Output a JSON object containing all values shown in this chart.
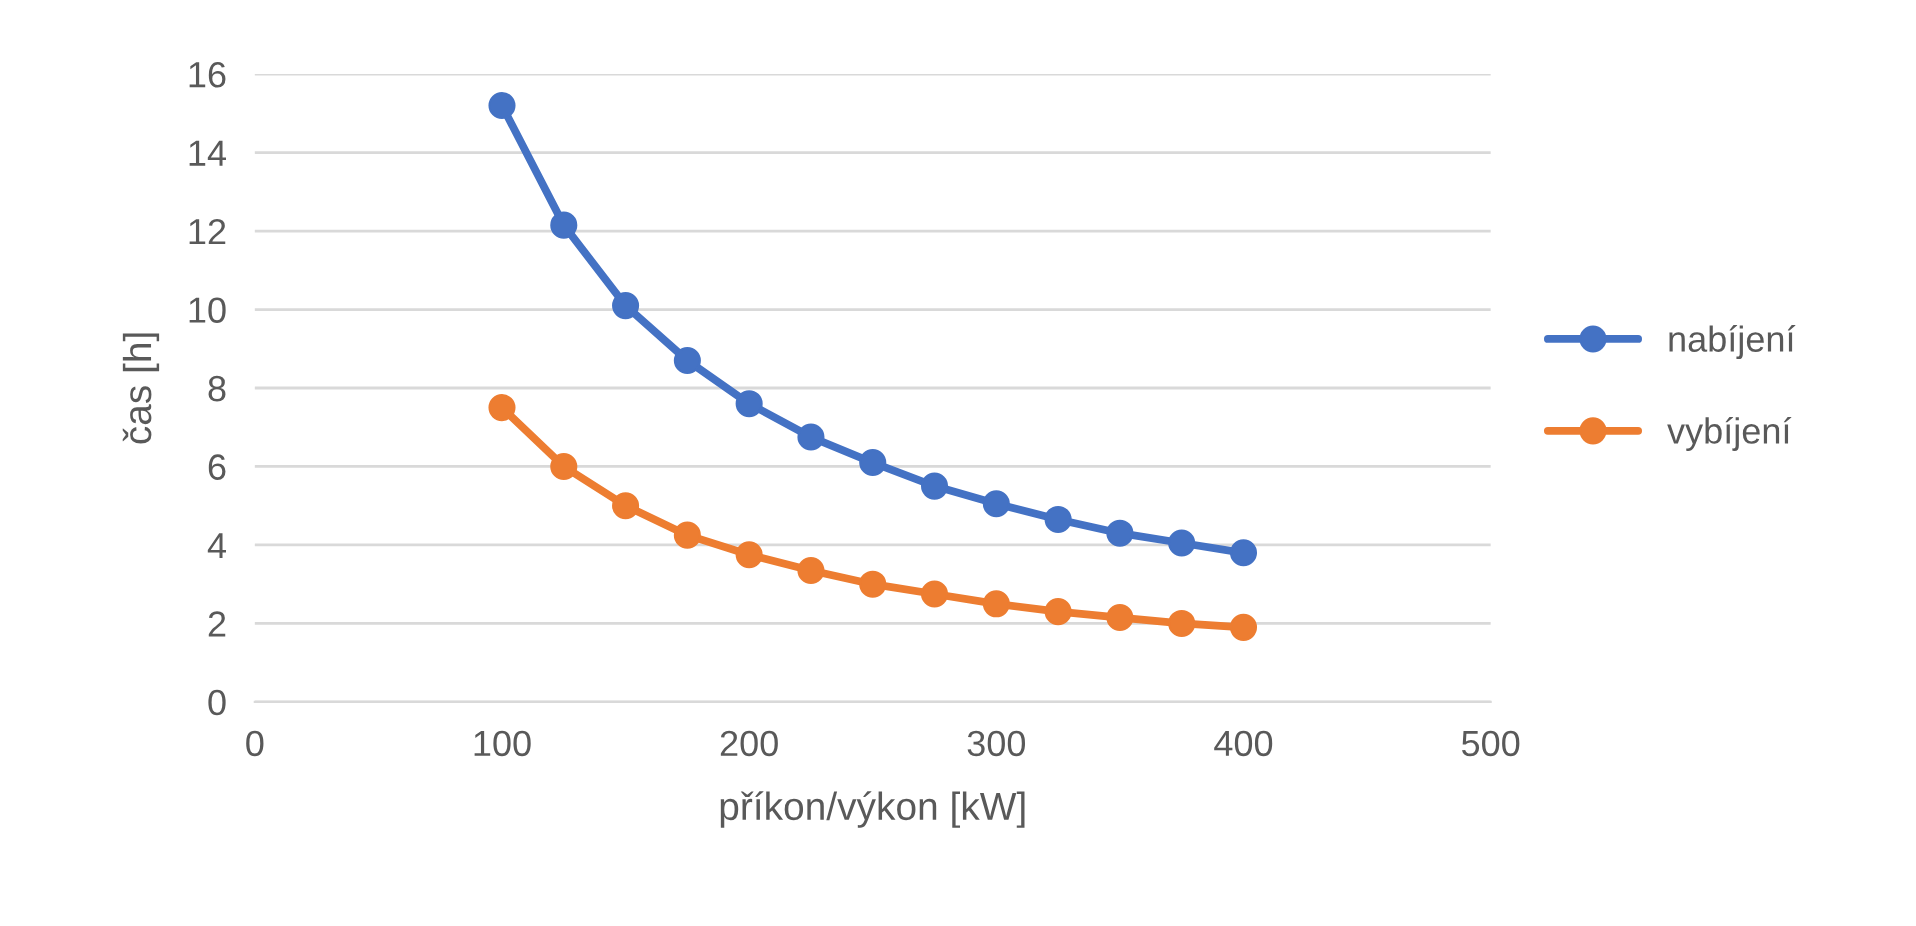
{
  "chart_data": {
    "type": "line",
    "xlabel": "příkon/výkon [kW]",
    "ylabel": "čas [h]",
    "x": [
      100,
      125,
      150,
      175,
      200,
      225,
      250,
      275,
      300,
      325,
      350,
      375,
      400
    ],
    "series": [
      {
        "name": "nabíjení",
        "color": "#4472c4",
        "values": [
          15.2,
          12.15,
          10.1,
          8.7,
          7.6,
          6.75,
          6.1,
          5.5,
          5.05,
          4.65,
          4.3,
          4.05,
          3.8
        ]
      },
      {
        "name": "vybíjení",
        "color": "#ed7d31",
        "values": [
          7.5,
          6.0,
          5.0,
          4.25,
          3.75,
          3.35,
          3.0,
          2.75,
          2.5,
          2.3,
          2.15,
          2.0,
          1.9
        ]
      }
    ],
    "xlim": [
      0,
      500
    ],
    "xticks": [
      0,
      100,
      200,
      300,
      400,
      500
    ],
    "ylim": [
      0,
      16
    ],
    "yticks": [
      0,
      2,
      4,
      6,
      8,
      10,
      12,
      14,
      16
    ],
    "grid": "y",
    "legend": "right",
    "marker": "circle",
    "line_style": "solid"
  }
}
